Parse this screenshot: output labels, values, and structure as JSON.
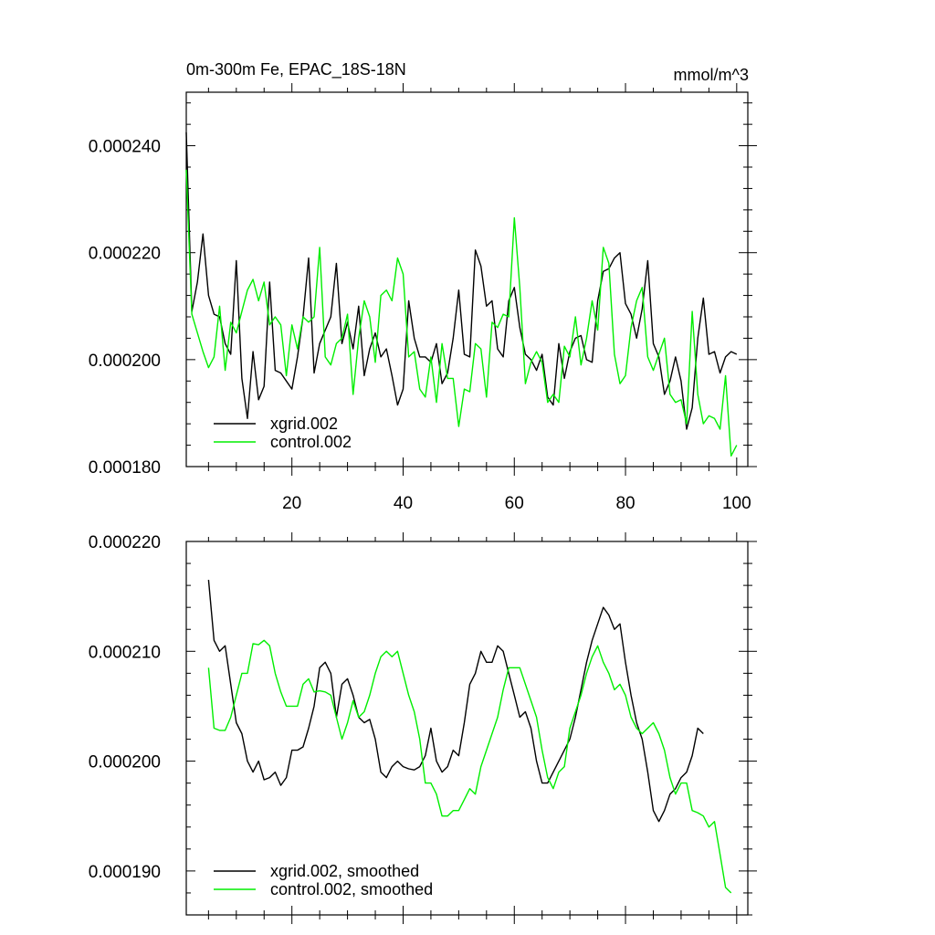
{
  "colors": {
    "xgrid": "#000000",
    "control": "#00ee00",
    "background": "#ffffff"
  },
  "chart_data": [
    {
      "type": "line",
      "title": "0m-300m Fe, EPAC_18S-18N",
      "units": "mmol/m^3",
      "xlim": [
        1,
        102
      ],
      "ylim": [
        0.00018,
        0.00025
      ],
      "x_ticks": [
        20,
        40,
        60,
        80,
        100
      ],
      "y_ticks": [
        0.00018,
        0.0002,
        0.00022,
        0.00024
      ],
      "y_tick_labels": [
        "0.000180",
        "0.000200",
        "0.000220",
        "0.000240"
      ],
      "x_tick_labels": [
        "20",
        "40",
        "60",
        "80",
        "100"
      ],
      "legend_position": "bottom-left",
      "grid": false,
      "x_start": 1,
      "series": [
        {
          "name": "xgrid.002",
          "color": "#000000",
          "values": [
            0.0002425,
            0.000209,
            0.0002145,
            0.0002235,
            0.000212,
            0.0002085,
            0.000208,
            0.000203,
            0.000201,
            0.0002185,
            0.0001965,
            0.000189,
            0.0002015,
            0.0001925,
            0.000195,
            0.0002145,
            0.000198,
            0.0001975,
            0.000196,
            0.0001945,
            0.0002005,
            0.000208,
            0.000219,
            0.0001975,
            0.000203,
            0.0002055,
            0.000208,
            0.000218,
            0.000203,
            0.000207,
            0.000202,
            0.00021,
            0.000197,
            0.000202,
            0.000205,
            0.0002005,
            0.000202,
            0.000197,
            0.0001915,
            0.0001945,
            0.000211,
            0.000204,
            0.0002005,
            0.0002005,
            0.0001995,
            0.000203,
            0.0001955,
            0.0001975,
            0.000204,
            0.000213,
            0.000201,
            0.0002005,
            0.0002205,
            0.0002175,
            0.00021,
            0.000211,
            0.000202,
            0.0002005,
            0.000211,
            0.0002135,
            0.000206,
            0.000201,
            0.0002,
            0.000198,
            0.000201,
            0.000193,
            0.0001915,
            0.000203,
            0.0001965,
            0.0002015,
            0.000204,
            0.0002045,
            0.0002,
            0.0001995,
            0.000211,
            0.0002165,
            0.000217,
            0.000219,
            0.00022,
            0.0002105,
            0.0002085,
            0.000204,
            0.0002095,
            0.0002185,
            0.000203,
            0.0002005,
            0.0001935,
            0.000196,
            0.0002005,
            0.000196,
            0.000187,
            0.000191,
            0.000204,
            0.0002115,
            0.000201,
            0.0002015,
            0.0001975,
            0.0002005,
            0.0002015,
            0.000201
          ]
        },
        {
          "name": "control.002",
          "color": "#00ee00",
          "values": [
            0.0002355,
            0.0002085,
            0.000205,
            0.0002015,
            0.0001985,
            0.0002005,
            0.00021,
            0.000198,
            0.000207,
            0.000205,
            0.000209,
            0.000213,
            0.000215,
            0.000211,
            0.0002145,
            0.0002065,
            0.000208,
            0.0002065,
            0.000197,
            0.0002065,
            0.000202,
            0.000208,
            0.000207,
            0.000208,
            0.000221,
            0.0002005,
            0.000199,
            0.000203,
            0.000204,
            0.0002085,
            0.0001935,
            0.000204,
            0.000211,
            0.000208,
            0.0001995,
            0.000212,
            0.000213,
            0.000211,
            0.000219,
            0.000216,
            0.0002005,
            0.0002015,
            0.0001945,
            0.000193,
            0.0002005,
            0.000192,
            0.000203,
            0.0001965,
            0.0001965,
            0.0001875,
            0.0001945,
            0.000194,
            0.000203,
            0.000202,
            0.000193,
            0.000207,
            0.000206,
            0.0002085,
            0.000208,
            0.0002265,
            0.0002135,
            0.0001955,
            0.0001995,
            0.0002015,
            0.0001995,
            0.000192,
            0.0001935,
            0.000192,
            0.0002025,
            0.0002005,
            0.000208,
            0.000199,
            0.000204,
            0.000211,
            0.0002055,
            0.000221,
            0.000218,
            0.000201,
            0.0001955,
            0.000197,
            0.000206,
            0.000211,
            0.0002135,
            0.0002005,
            0.000198,
            0.000201,
            0.000204,
            0.0001935,
            0.000192,
            0.0001925,
            0.000188,
            0.000209,
            0.0001935,
            0.000188,
            0.0001895,
            0.000189,
            0.000187,
            0.000197,
            0.000182,
            0.000184
          ]
        }
      ]
    },
    {
      "type": "line",
      "xlim": [
        1,
        102
      ],
      "ylim": [
        0.000186,
        0.00022
      ],
      "x_ticks": [
        20,
        40,
        60,
        80,
        100
      ],
      "y_ticks": [
        0.00019,
        0.0002,
        0.00021,
        0.00022
      ],
      "y_tick_labels": [
        "0.000190",
        "0.000200",
        "0.000210",
        "0.000220"
      ],
      "legend_position": "bottom-left",
      "grid": false,
      "x_start": 5,
      "series": [
        {
          "name": "xgrid.002, smoothed",
          "color": "#000000",
          "values": [
            0.0002165,
            0.000211,
            0.00021,
            0.0002105,
            0.000207,
            0.0002035,
            0.0002025,
            0.0002,
            0.000199,
            0.0002,
            0.0001983,
            0.0001985,
            0.000199,
            0.0001978,
            0.0001985,
            0.000201,
            0.000201,
            0.0002013,
            0.000203,
            0.000205,
            0.0002085,
            0.000209,
            0.000208,
            0.000204,
            0.000207,
            0.0002075,
            0.000206,
            0.000204,
            0.0002035,
            0.0002038,
            0.000202,
            0.000199,
            0.0001985,
            0.0001995,
            0.0002,
            0.0001995,
            0.0001993,
            0.0001992,
            0.0001995,
            0.0002005,
            0.000203,
            0.0002,
            0.000199,
            0.0001995,
            0.000201,
            0.0002005,
            0.0002035,
            0.000207,
            0.000208,
            0.00021,
            0.000209,
            0.000209,
            0.0002105,
            0.00021,
            0.000208,
            0.000206,
            0.000204,
            0.0002045,
            0.000203,
            0.0002,
            0.000198,
            0.000198,
            0.000199,
            0.0002,
            0.000201,
            0.000202,
            0.000204,
            0.0002065,
            0.000209,
            0.000211,
            0.0002125,
            0.000214,
            0.0002133,
            0.000212,
            0.0002125,
            0.000209,
            0.000206,
            0.0002035,
            0.000202,
            0.000199,
            0.0001955,
            0.0001945,
            0.0001955,
            0.000197,
            0.0001975,
            0.0001985,
            0.000199,
            0.0002005,
            0.000203,
            0.0002025
          ]
        },
        {
          "name": "control.002, smoothed",
          "color": "#00ee00",
          "values": [
            0.0002085,
            0.000203,
            0.0002028,
            0.0002028,
            0.000204,
            0.000206,
            0.000208,
            0.000208,
            0.0002107,
            0.0002106,
            0.000211,
            0.0002105,
            0.000208,
            0.0002063,
            0.000205,
            0.000205,
            0.000205,
            0.000207,
            0.0002075,
            0.0002063,
            0.0002064,
            0.0002063,
            0.000206,
            0.000204,
            0.000202,
            0.0002035,
            0.0002055,
            0.000204,
            0.0002045,
            0.000206,
            0.000208,
            0.0002095,
            0.00021,
            0.0002095,
            0.00021,
            0.000208,
            0.000206,
            0.0002045,
            0.000202,
            0.000198,
            0.000198,
            0.000197,
            0.000195,
            0.000195,
            0.0001955,
            0.0001955,
            0.0001965,
            0.0001975,
            0.000197,
            0.0001995,
            0.000201,
            0.0002025,
            0.000204,
            0.0002065,
            0.0002085,
            0.0002085,
            0.0002085,
            0.000207,
            0.0002055,
            0.000204,
            0.000201,
            0.0001985,
            0.0001975,
            0.000199,
            0.0001995,
            0.000203,
            0.0002045,
            0.000206,
            0.000208,
            0.0002095,
            0.0002105,
            0.000209,
            0.000208,
            0.0002065,
            0.000207,
            0.000206,
            0.000204,
            0.000203,
            0.0002025,
            0.000203,
            0.0002035,
            0.0002025,
            0.000201,
            0.0001985,
            0.000197,
            0.000198,
            0.000198,
            0.0001955,
            0.0001953,
            0.000195,
            0.000194,
            0.0001945,
            0.0001915,
            0.0001885,
            0.000188
          ]
        }
      ]
    }
  ]
}
